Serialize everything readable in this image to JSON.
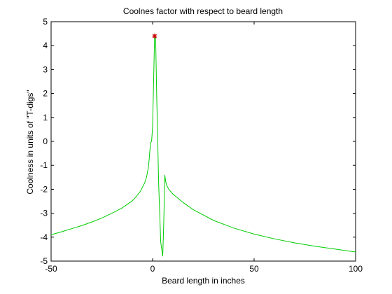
{
  "chart_data": {
    "type": "line",
    "title": "Coolnes factor with respect to beard length",
    "xlabel": "Beard length in inches",
    "ylabel": "Coolness in units of \"T-digs\"",
    "xlim": [
      -50,
      100
    ],
    "ylim": [
      -5,
      5
    ],
    "xticks": [
      -50,
      0,
      50,
      100
    ],
    "yticks": [
      -5,
      -4,
      -3,
      -2,
      -1,
      0,
      1,
      2,
      3,
      4,
      5
    ],
    "grid": false,
    "legend": "none",
    "series": [
      {
        "color": "#00cc00",
        "x": [
          -50,
          -45,
          -40,
          -35,
          -30,
          -25,
          -20,
          -15,
          -10,
          -8,
          -6,
          -4,
          -3,
          -2,
          -1,
          -0.5,
          0,
          0.5,
          1,
          1.5,
          2,
          3,
          4,
          5,
          5.5,
          6,
          6.5,
          7,
          8,
          10,
          15,
          20,
          30,
          40,
          50,
          60,
          70,
          80,
          90,
          100
        ],
        "y": [
          -3.9,
          -3.78,
          -3.65,
          -3.52,
          -3.37,
          -3.2,
          -3.0,
          -2.78,
          -2.48,
          -2.3,
          -2.08,
          -1.75,
          -1.5,
          -1.05,
          -0.05,
          0.0,
          0.6,
          2.5,
          4.5,
          4.3,
          2.0,
          -1.8,
          -4.2,
          -4.8,
          -3.4,
          -1.4,
          -1.7,
          -1.85,
          -2.0,
          -2.2,
          -2.55,
          -2.85,
          -3.3,
          -3.62,
          -3.87,
          -4.07,
          -4.24,
          -4.38,
          -4.5,
          -4.62
        ]
      }
    ],
    "marker": {
      "x": 1,
      "y": 4.4,
      "color": "#cc0000",
      "symbol": "star"
    }
  }
}
